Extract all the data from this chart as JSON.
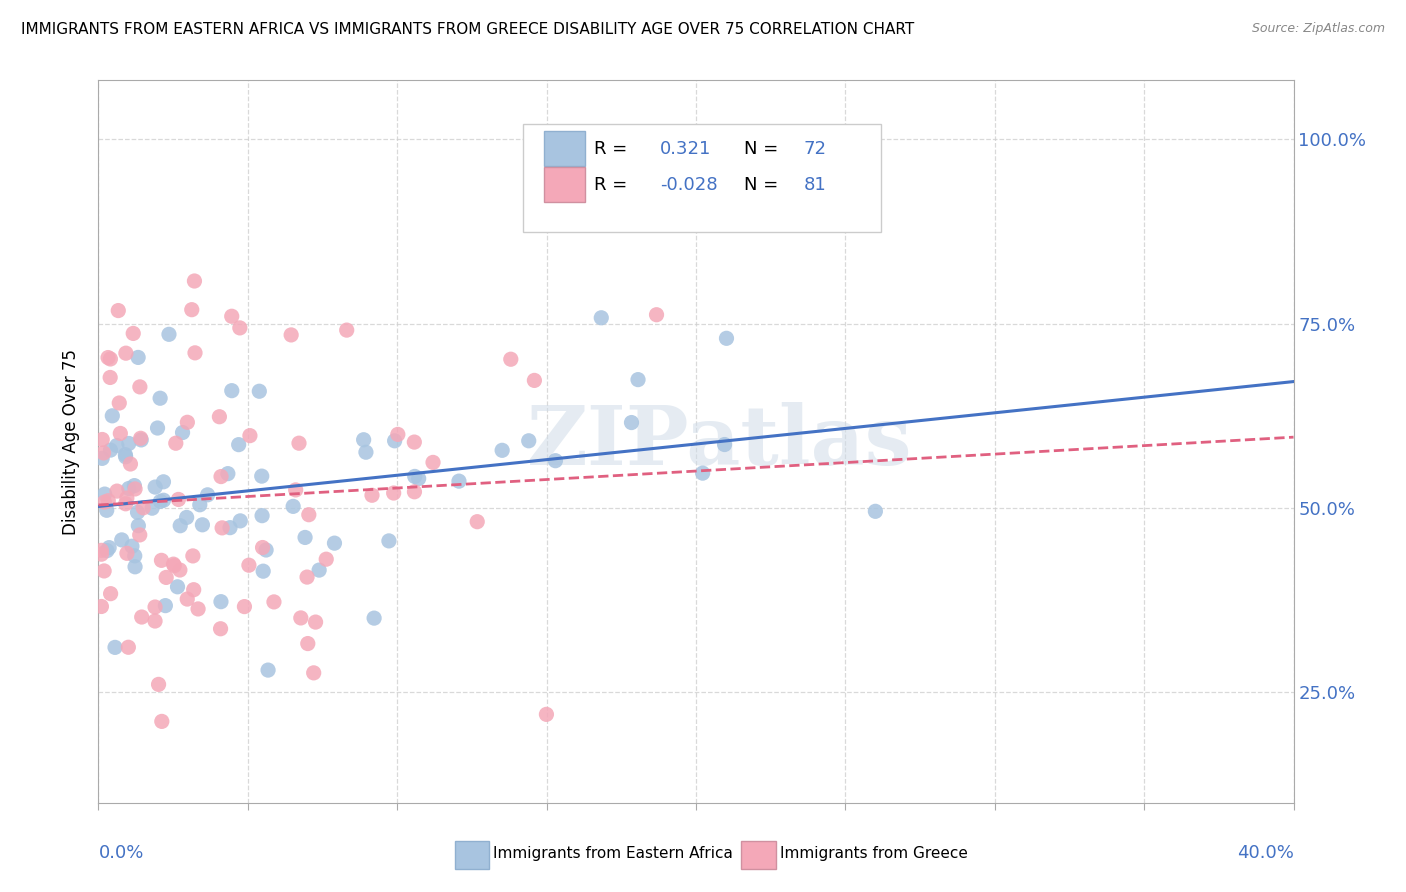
{
  "title": "IMMIGRANTS FROM EASTERN AFRICA VS IMMIGRANTS FROM GREECE DISABILITY AGE OVER 75 CORRELATION CHART",
  "source": "Source: ZipAtlas.com",
  "ylabel": "Disability Age Over 75",
  "right_yticks": [
    "25.0%",
    "50.0%",
    "75.0%",
    "100.0%"
  ],
  "right_ytick_vals": [
    0.25,
    0.5,
    0.75,
    1.0
  ],
  "legend1_label_r": "R =   0.321",
  "legend1_label_n": "N = 72",
  "legend2_label_r": "R = -0.028",
  "legend2_label_n": "N = 81",
  "series1_color": "#a8c4e0",
  "series2_color": "#f4a8b8",
  "trendline1_color": "#4472c4",
  "trendline2_color": "#e06080",
  "watermark": "ZIPatlas",
  "R1": 0.321,
  "N1": 72,
  "R2": -0.028,
  "N2": 81,
  "xmin": 0.0,
  "xmax": 0.4,
  "ymin": 0.1,
  "ymax": 1.08,
  "background_color": "#ffffff",
  "grid_color": "#d0d0d0",
  "seed1": 42,
  "seed2": 99,
  "bottom_label1": "Immigrants from Eastern Africa",
  "bottom_label2": "Immigrants from Greece"
}
